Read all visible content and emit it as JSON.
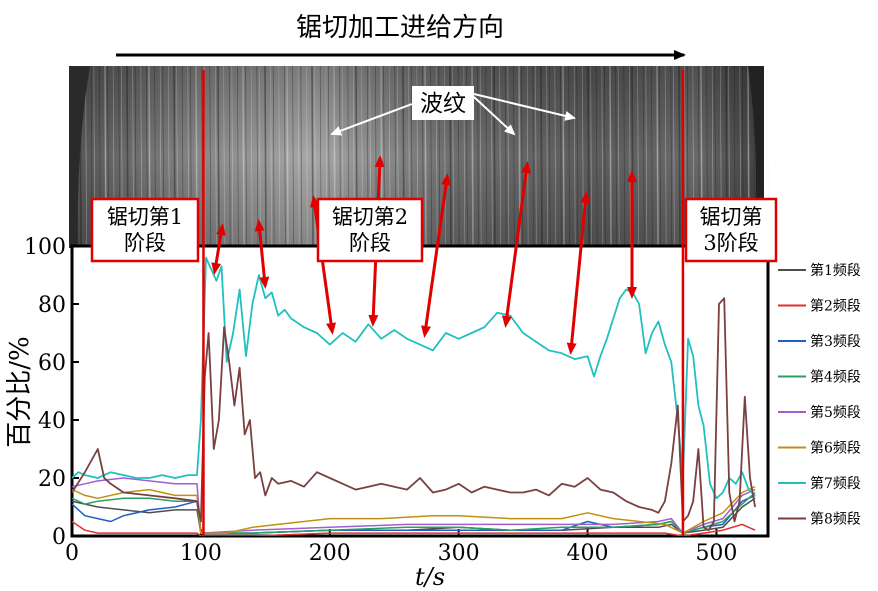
{
  "figure": {
    "direction_label": "锯切加工进给方向",
    "photo_label": "波纹",
    "stage_labels": [
      [
        "锯切第1",
        "阶段"
      ],
      [
        "锯切第2",
        "阶段"
      ],
      [
        "锯切第",
        "3阶段"
      ]
    ]
  },
  "chart_data": {
    "type": "line",
    "xlabel": "t/s",
    "ylabel": "百分比/%",
    "xlim": [
      0,
      540
    ],
    "ylim": [
      0,
      100
    ],
    "xticks": [
      0,
      100,
      200,
      300,
      400,
      500
    ],
    "yticks": [
      0,
      20,
      40,
      60,
      80,
      100
    ],
    "stage_boundaries": [
      102,
      474
    ],
    "legend_position": "right",
    "series": [
      {
        "name": "第1频段",
        "color": "#4d4d4d",
        "x": [
          0,
          20,
          40,
          60,
          80,
          97,
          100,
          140,
          200,
          260,
          300,
          340,
          380,
          420,
          455,
          465,
          474,
          490,
          505,
          520,
          530
        ],
        "y": [
          12,
          10,
          9,
          8,
          9,
          9,
          1,
          1,
          2,
          2,
          3,
          2,
          2,
          3,
          3,
          4,
          1,
          2,
          3,
          10,
          13
        ]
      },
      {
        "name": "第2频段",
        "color": "#e03030",
        "x": [
          0,
          10,
          20,
          40,
          60,
          80,
          97,
          100,
          140,
          200,
          260,
          300,
          340,
          380,
          420,
          460,
          474,
          490,
          505,
          520,
          530
        ],
        "y": [
          5,
          2,
          1,
          1,
          1,
          1,
          1,
          0,
          0,
          1,
          1,
          1,
          1,
          1,
          1,
          1,
          0,
          1,
          2,
          4,
          2
        ]
      },
      {
        "name": "第3频段",
        "color": "#1f5fbf",
        "x": [
          0,
          10,
          20,
          30,
          40,
          60,
          80,
          97,
          100,
          140,
          200,
          260,
          300,
          340,
          380,
          400,
          420,
          455,
          465,
          474,
          490,
          505,
          520,
          530
        ],
        "y": [
          11,
          7,
          6,
          5,
          7,
          9,
          10,
          12,
          1,
          1,
          2,
          2,
          2,
          2,
          2,
          5,
          3,
          4,
          5,
          1,
          3,
          4,
          12,
          14
        ]
      },
      {
        "name": "第4频段",
        "color": "#2aa060",
        "x": [
          0,
          10,
          20,
          40,
          60,
          80,
          97,
          100,
          140,
          200,
          260,
          300,
          340,
          380,
          420,
          455,
          465,
          474,
          490,
          505,
          520,
          530
        ],
        "y": [
          13,
          11,
          12,
          13,
          13,
          12,
          12,
          1,
          1,
          2,
          3,
          3,
          2,
          3,
          3,
          4,
          5,
          1,
          3,
          5,
          11,
          15
        ]
      },
      {
        "name": "第5频段",
        "color": "#a060d0",
        "x": [
          0,
          10,
          20,
          40,
          60,
          80,
          97,
          100,
          140,
          200,
          260,
          300,
          340,
          380,
          420,
          455,
          465,
          474,
          490,
          505,
          520,
          530
        ],
        "y": [
          17,
          18,
          19,
          20,
          19,
          18,
          18,
          1,
          2,
          3,
          4,
          4,
          4,
          4,
          4,
          5,
          6,
          1,
          4,
          6,
          14,
          16
        ]
      },
      {
        "name": "第6频段",
        "color": "#c09010",
        "x": [
          0,
          10,
          20,
          40,
          60,
          80,
          97,
          100,
          120,
          140,
          160,
          200,
          240,
          280,
          300,
          340,
          380,
          400,
          420,
          440,
          460,
          474,
          490,
          505,
          520,
          530
        ],
        "y": [
          16,
          14,
          13,
          15,
          16,
          14,
          14,
          1,
          1,
          3,
          4,
          6,
          6,
          7,
          7,
          6,
          6,
          8,
          6,
          5,
          4,
          1,
          5,
          8,
          15,
          17
        ]
      },
      {
        "name": "第7频段",
        "color": "#20c0c0",
        "x": [
          0,
          5,
          10,
          20,
          30,
          40,
          50,
          60,
          70,
          80,
          90,
          97,
          100,
          104,
          108,
          112,
          116,
          120,
          125,
          130,
          135,
          140,
          145,
          150,
          155,
          160,
          165,
          170,
          180,
          190,
          200,
          210,
          220,
          230,
          240,
          250,
          260,
          270,
          280,
          290,
          300,
          310,
          320,
          330,
          340,
          350,
          360,
          370,
          380,
          390,
          400,
          405,
          410,
          415,
          420,
          425,
          430,
          435,
          440,
          445,
          450,
          455,
          460,
          465,
          470,
          474,
          478,
          482,
          486,
          490,
          495,
          500,
          505,
          510,
          515,
          520,
          525,
          530
        ],
        "y": [
          20,
          22,
          21,
          20,
          22,
          21,
          20,
          20,
          21,
          20,
          21,
          21,
          40,
          96,
          92,
          88,
          93,
          60,
          70,
          85,
          62,
          80,
          90,
          82,
          84,
          76,
          78,
          75,
          72,
          70,
          66,
          70,
          67,
          73,
          68,
          71,
          68,
          66,
          64,
          70,
          68,
          70,
          72,
          77,
          76,
          70,
          67,
          64,
          63,
          61,
          62,
          55,
          62,
          68,
          75,
          82,
          85,
          84,
          80,
          63,
          70,
          74,
          66,
          60,
          40,
          20,
          68,
          62,
          45,
          38,
          18,
          13,
          15,
          20,
          18,
          22,
          16,
          14
        ]
      },
      {
        "name": "第8频段",
        "color": "#7a4040",
        "x": [
          0,
          10,
          20,
          25,
          30,
          40,
          60,
          80,
          97,
          100,
          103,
          106,
          110,
          114,
          118,
          122,
          126,
          130,
          134,
          138,
          142,
          146,
          150,
          155,
          160,
          170,
          180,
          190,
          200,
          210,
          220,
          230,
          240,
          250,
          260,
          270,
          280,
          290,
          300,
          310,
          320,
          330,
          340,
          350,
          360,
          370,
          380,
          390,
          400,
          410,
          420,
          430,
          440,
          450,
          455,
          460,
          465,
          470,
          474,
          478,
          482,
          486,
          490,
          494,
          498,
          502,
          506,
          510,
          514,
          518,
          522,
          526,
          530
        ],
        "y": [
          15,
          22,
          30,
          20,
          18,
          15,
          14,
          13,
          12,
          5,
          55,
          70,
          30,
          40,
          72,
          60,
          45,
          58,
          35,
          40,
          20,
          22,
          14,
          20,
          18,
          19,
          17,
          22,
          20,
          18,
          16,
          17,
          18,
          17,
          16,
          20,
          15,
          16,
          18,
          15,
          17,
          16,
          15,
          15,
          16,
          14,
          18,
          17,
          20,
          16,
          15,
          12,
          10,
          9,
          8,
          12,
          25,
          45,
          5,
          7,
          12,
          30,
          3,
          2,
          5,
          80,
          82,
          15,
          5,
          12,
          48,
          20,
          10
        ]
      }
    ]
  }
}
